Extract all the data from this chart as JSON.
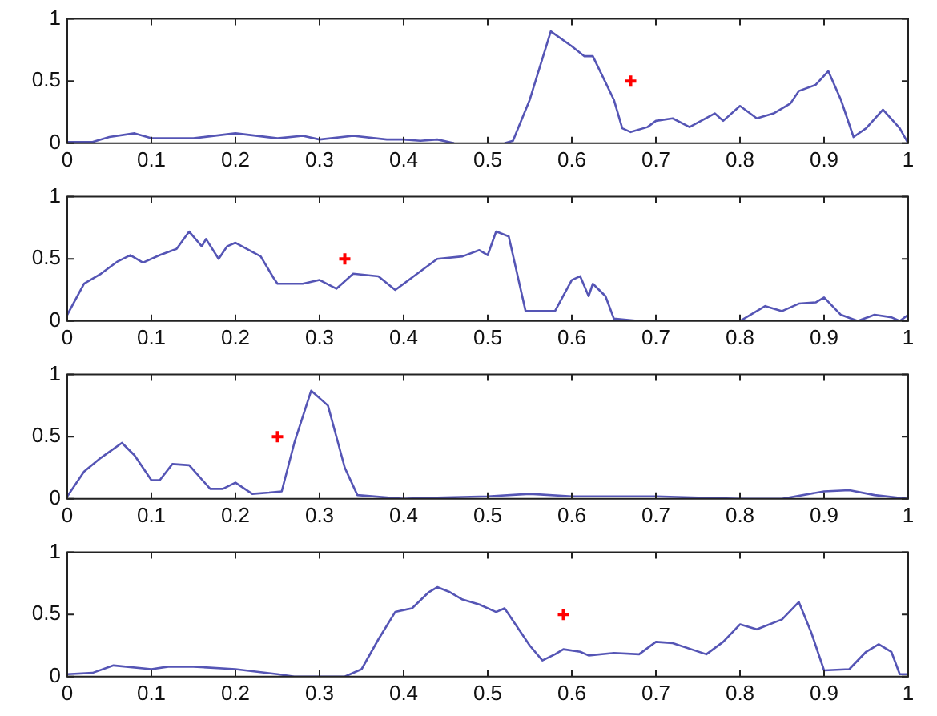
{
  "chart_data": [
    {
      "type": "line",
      "xlim": [
        0,
        1
      ],
      "xticks": [
        0,
        0.1,
        0.2,
        0.3,
        0.4,
        0.5,
        0.6,
        0.7,
        0.8,
        0.9,
        1
      ],
      "ylim": [
        0,
        1
      ],
      "yticks": [
        0,
        0.5,
        1
      ],
      "grid": false,
      "legend": false,
      "line_style": "solid",
      "series": [
        {
          "type": "line",
          "color": "#5555b5",
          "marker": "none",
          "x": [
            0,
            0.03,
            0.05,
            0.08,
            0.1,
            0.15,
            0.2,
            0.25,
            0.28,
            0.3,
            0.34,
            0.38,
            0.4,
            0.42,
            0.44,
            0.46,
            0.5,
            0.52,
            0.53,
            0.55,
            0.575,
            0.6,
            0.615,
            0.625,
            0.65,
            0.66,
            0.67,
            0.69,
            0.7,
            0.72,
            0.74,
            0.77,
            0.78,
            0.8,
            0.82,
            0.84,
            0.86,
            0.87,
            0.89,
            0.905,
            0.92,
            0.935,
            0.95,
            0.97,
            0.99,
            1
          ],
          "values": [
            0.01,
            0.01,
            0.05,
            0.08,
            0.04,
            0.04,
            0.08,
            0.04,
            0.06,
            0.03,
            0.06,
            0.03,
            0.03,
            0.02,
            0.03,
            0,
            null,
            0,
            0.02,
            0.35,
            0.9,
            0.78,
            0.7,
            0.7,
            0.35,
            0.12,
            0.09,
            0.13,
            0.18,
            0.2,
            0.13,
            0.24,
            0.18,
            0.3,
            0.2,
            0.24,
            0.32,
            0.42,
            0.47,
            0.58,
            0.35,
            0.05,
            0.12,
            0.27,
            0.12,
            0
          ]
        },
        {
          "type": "scatter",
          "color": "#ff0000",
          "marker": "cross",
          "x": [
            0.67
          ],
          "values": [
            0.5
          ]
        }
      ]
    },
    {
      "type": "line",
      "xlim": [
        0,
        1
      ],
      "xticks": [
        0,
        0.1,
        0.2,
        0.3,
        0.4,
        0.5,
        0.6,
        0.7,
        0.8,
        0.9,
        1
      ],
      "ylim": [
        0,
        1
      ],
      "yticks": [
        0,
        0.5,
        1
      ],
      "grid": false,
      "legend": false,
      "line_style": "solid",
      "series": [
        {
          "type": "line",
          "color": "#5555b5",
          "marker": "none",
          "x": [
            0,
            0.02,
            0.04,
            0.06,
            0.075,
            0.09,
            0.11,
            0.13,
            0.145,
            0.16,
            0.165,
            0.18,
            0.19,
            0.2,
            0.23,
            0.245,
            0.25,
            0.28,
            0.3,
            0.32,
            0.34,
            0.37,
            0.39,
            0.41,
            0.44,
            0.47,
            0.49,
            0.5,
            0.51,
            0.525,
            0.545,
            0.58,
            0.6,
            0.61,
            0.62,
            0.625,
            0.64,
            0.65,
            0.68,
            0.8,
            0.83,
            0.85,
            0.87,
            0.89,
            0.9,
            0.92,
            0.94,
            0.96,
            0.98,
            0.99,
            1
          ],
          "values": [
            0.05,
            0.3,
            0.38,
            0.48,
            0.53,
            0.47,
            0.53,
            0.58,
            0.72,
            0.6,
            0.66,
            0.5,
            0.6,
            0.63,
            0.52,
            0.35,
            0.3,
            0.3,
            0.33,
            0.26,
            0.38,
            0.36,
            0.25,
            0.35,
            0.5,
            0.52,
            0.57,
            0.53,
            0.72,
            0.68,
            0.08,
            0.08,
            0.33,
            0.36,
            0.2,
            0.3,
            0.2,
            0.02,
            0,
            0,
            0.12,
            0.08,
            0.14,
            0.15,
            0.19,
            0.05,
            0,
            0.05,
            0.03,
            0,
            0.05
          ]
        },
        {
          "type": "scatter",
          "color": "#ff0000",
          "marker": "cross",
          "x": [
            0.33
          ],
          "values": [
            0.5
          ]
        }
      ]
    },
    {
      "type": "line",
      "xlim": [
        0,
        1
      ],
      "xticks": [
        0,
        0.1,
        0.2,
        0.3,
        0.4,
        0.5,
        0.6,
        0.7,
        0.8,
        0.9,
        1
      ],
      "ylim": [
        0,
        1
      ],
      "yticks": [
        0,
        0.5,
        1
      ],
      "grid": false,
      "legend": false,
      "line_style": "solid",
      "series": [
        {
          "type": "line",
          "color": "#5555b5",
          "marker": "none",
          "x": [
            0,
            0.02,
            0.04,
            0.065,
            0.08,
            0.1,
            0.11,
            0.125,
            0.145,
            0.17,
            0.185,
            0.2,
            0.22,
            0.24,
            0.255,
            0.27,
            0.29,
            0.31,
            0.33,
            0.345,
            0.4,
            0.44,
            0.5,
            0.55,
            0.6,
            0.7,
            0.8,
            0.85,
            0.9,
            0.93,
            0.96,
            1
          ],
          "values": [
            0.02,
            0.22,
            0.33,
            0.45,
            0.35,
            0.15,
            0.15,
            0.28,
            0.27,
            0.08,
            0.08,
            0.13,
            0.04,
            0.05,
            0.06,
            0.45,
            0.87,
            0.75,
            0.25,
            0.03,
            0,
            0.01,
            0.02,
            0.04,
            0.02,
            0.02,
            0,
            0,
            0.06,
            0.07,
            0.03,
            0
          ]
        },
        {
          "type": "scatter",
          "color": "#ff0000",
          "marker": "cross",
          "x": [
            0.25
          ],
          "values": [
            0.5
          ]
        }
      ]
    },
    {
      "type": "line",
      "xlim": [
        0,
        1
      ],
      "xticks": [
        0,
        0.1,
        0.2,
        0.3,
        0.4,
        0.5,
        0.6,
        0.7,
        0.8,
        0.9,
        1
      ],
      "ylim": [
        0,
        1
      ],
      "yticks": [
        0,
        0.5,
        1
      ],
      "grid": false,
      "legend": false,
      "line_style": "solid",
      "series": [
        {
          "type": "line",
          "color": "#5555b5",
          "marker": "none",
          "x": [
            0,
            0.03,
            0.055,
            0.1,
            0.12,
            0.15,
            0.2,
            0.25,
            0.27,
            0.33,
            0.35,
            0.37,
            0.39,
            0.41,
            0.43,
            0.44,
            0.455,
            0.47,
            0.49,
            0.51,
            0.52,
            0.55,
            0.565,
            0.58,
            0.59,
            0.61,
            0.62,
            0.65,
            0.68,
            0.7,
            0.72,
            0.76,
            0.78,
            0.8,
            0.82,
            0.85,
            0.87,
            0.885,
            0.9,
            0.93,
            0.95,
            0.965,
            0.98,
            0.99,
            1
          ],
          "values": [
            0.02,
            0.03,
            0.09,
            0.06,
            0.08,
            0.08,
            0.06,
            0.02,
            0,
            0,
            0.06,
            0.3,
            0.52,
            0.55,
            0.68,
            0.72,
            0.68,
            0.62,
            0.58,
            0.52,
            0.55,
            0.25,
            0.13,
            0.18,
            0.22,
            0.2,
            0.17,
            0.19,
            0.18,
            0.28,
            0.27,
            0.18,
            0.28,
            0.42,
            0.38,
            0.46,
            0.6,
            0.35,
            0.05,
            0.06,
            0.2,
            0.26,
            0.2,
            0.02,
            0.02
          ]
        },
        {
          "type": "scatter",
          "color": "#ff0000",
          "marker": "cross",
          "x": [
            0.59
          ],
          "values": [
            0.5
          ]
        }
      ]
    }
  ]
}
